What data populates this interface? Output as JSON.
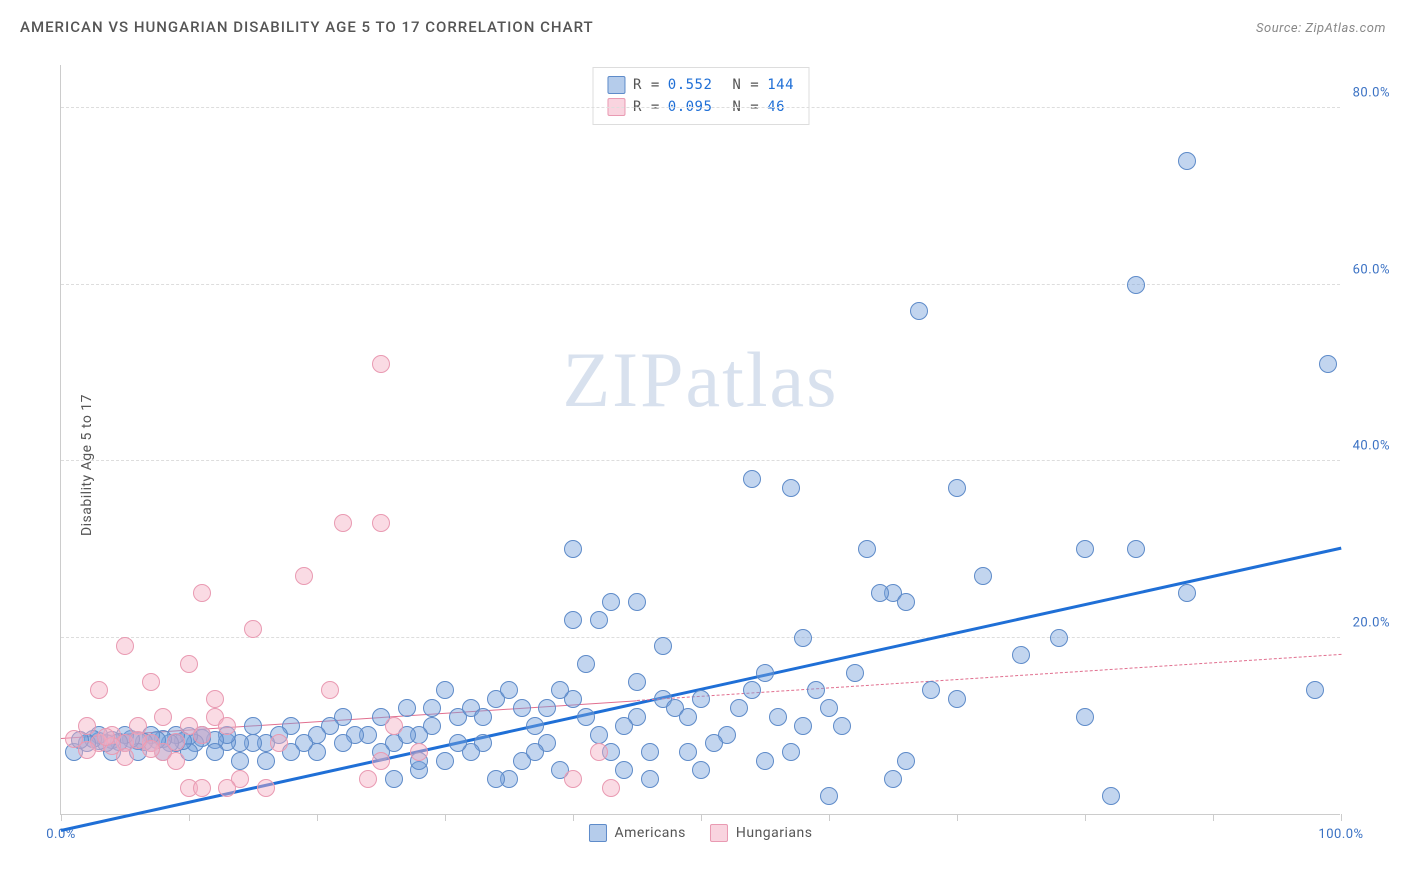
{
  "title": "AMERICAN VS HUNGARIAN DISABILITY AGE 5 TO 17 CORRELATION CHART",
  "source": "Source: ZipAtlas.com",
  "ylabel": "Disability Age 5 to 17",
  "watermark_a": "ZIP",
  "watermark_b": "atlas",
  "chart": {
    "type": "scatter",
    "xlim": [
      0,
      100
    ],
    "ylim": [
      0,
      85
    ],
    "background_color": "#ffffff",
    "grid_color": "#dddddd",
    "axis_color": "#cccccc",
    "x_ticks": [
      0,
      10,
      20,
      30,
      40,
      50,
      60,
      70,
      80,
      90,
      100
    ],
    "x_tick_labels": {
      "0": "0.0%",
      "100": "100.0%"
    },
    "x_label_color": "#3b72c4",
    "y_ticks": [
      20,
      40,
      60,
      80
    ],
    "y_tick_labels": [
      "20.0%",
      "40.0%",
      "60.0%",
      "80.0%"
    ],
    "y_label_color": "#3b72c4",
    "point_radius": 9,
    "point_stroke_width": 1,
    "series": [
      {
        "name": "Americans",
        "fill": "rgba(120,162,219,0.45)",
        "stroke": "#5e8bc9",
        "trend": {
          "y_at_x0": -2,
          "y_at_x100": 30,
          "color": "#1f6fd6",
          "width": 3,
          "dash": "solid"
        },
        "points": [
          [
            1,
            7
          ],
          [
            54,
            38
          ],
          [
            84,
            30
          ],
          [
            84,
            60
          ],
          [
            99,
            51
          ],
          [
            67,
            57
          ],
          [
            88,
            74
          ],
          [
            98,
            14
          ],
          [
            80,
            30
          ],
          [
            80,
            11
          ],
          [
            70,
            13
          ],
          [
            65,
            25
          ],
          [
            64,
            25
          ],
          [
            88,
            25
          ],
          [
            70,
            37
          ],
          [
            45,
            24
          ],
          [
            65,
            4
          ],
          [
            60,
            2
          ],
          [
            60,
            12
          ],
          [
            66,
            6
          ],
          [
            72,
            27
          ],
          [
            75,
            18
          ],
          [
            78,
            20
          ],
          [
            82,
            2
          ],
          [
            58,
            10
          ],
          [
            57,
            37
          ],
          [
            50,
            5
          ],
          [
            49,
            7
          ],
          [
            50,
            13
          ],
          [
            47,
            13
          ],
          [
            45,
            11
          ],
          [
            44,
            5
          ],
          [
            42,
            22
          ],
          [
            40,
            13
          ],
          [
            38,
            8
          ],
          [
            37,
            10
          ],
          [
            36,
            12
          ],
          [
            35,
            4
          ],
          [
            34,
            13
          ],
          [
            33,
            8
          ],
          [
            32,
            7
          ],
          [
            31,
            11
          ],
          [
            30,
            6
          ],
          [
            29,
            10
          ],
          [
            28,
            5
          ],
          [
            28,
            9
          ],
          [
            27,
            12
          ],
          [
            26,
            8
          ],
          [
            25,
            7
          ],
          [
            25,
            11
          ],
          [
            24,
            9
          ],
          [
            23,
            9
          ],
          [
            22,
            8
          ],
          [
            22,
            11
          ],
          [
            21,
            10
          ],
          [
            20,
            7
          ],
          [
            20,
            9
          ],
          [
            19,
            8
          ],
          [
            18,
            7
          ],
          [
            18,
            10
          ],
          [
            17,
            9
          ],
          [
            16,
            8
          ],
          [
            16,
            6
          ],
          [
            15,
            8
          ],
          [
            15,
            10
          ],
          [
            14,
            8
          ],
          [
            14,
            6
          ],
          [
            13,
            8.2
          ],
          [
            13,
            9
          ],
          [
            12,
            8.4
          ],
          [
            12,
            7
          ],
          [
            11,
            8.6
          ],
          [
            11,
            9
          ],
          [
            10.5,
            8.0
          ],
          [
            10,
            8.8
          ],
          [
            10,
            7
          ],
          [
            9.5,
            8.3
          ],
          [
            9,
            8
          ],
          [
            9,
            9
          ],
          [
            8.5,
            8.1
          ],
          [
            8,
            8.5
          ],
          [
            8,
            7
          ],
          [
            7.5,
            8.4
          ],
          [
            7,
            8
          ],
          [
            7,
            9
          ],
          [
            6.5,
            8.2
          ],
          [
            6,
            8.3
          ],
          [
            6,
            7
          ],
          [
            5.5,
            8.5
          ],
          [
            5,
            8
          ],
          [
            5,
            9
          ],
          [
            4.5,
            8.2
          ],
          [
            4,
            8.4
          ],
          [
            4,
            7
          ],
          [
            3.5,
            8.1
          ],
          [
            3,
            8.3
          ],
          [
            3,
            9
          ],
          [
            2.5,
            8.5
          ],
          [
            2,
            8
          ],
          [
            1.5,
            8.4
          ],
          [
            39,
            14
          ],
          [
            42,
            9
          ],
          [
            44,
            10
          ],
          [
            46,
            7
          ],
          [
            48,
            12
          ],
          [
            52,
            9
          ],
          [
            54,
            14
          ],
          [
            55,
            6
          ],
          [
            56,
            11
          ],
          [
            58,
            20
          ],
          [
            62,
            16
          ],
          [
            63,
            30
          ],
          [
            66,
            24
          ],
          [
            68,
            14
          ],
          [
            43,
            24
          ],
          [
            41,
            17
          ],
          [
            40,
            22
          ],
          [
            38,
            12
          ],
          [
            36,
            6
          ],
          [
            34,
            4
          ],
          [
            32,
            12
          ],
          [
            30,
            14
          ],
          [
            28,
            6
          ],
          [
            26,
            4
          ],
          [
            40,
            30
          ],
          [
            45,
            15
          ],
          [
            47,
            19
          ],
          [
            49,
            11
          ],
          [
            51,
            8
          ],
          [
            53,
            12
          ],
          [
            55,
            16
          ],
          [
            57,
            7
          ],
          [
            59,
            14
          ],
          [
            61,
            10
          ],
          [
            35,
            14
          ],
          [
            37,
            7
          ],
          [
            39,
            5
          ],
          [
            41,
            11
          ],
          [
            43,
            7
          ],
          [
            33,
            11
          ],
          [
            31,
            8
          ],
          [
            29,
            12
          ],
          [
            27,
            9
          ],
          [
            46,
            4
          ]
        ]
      },
      {
        "name": "Hungarians",
        "fill": "rgba(244,176,196,0.45)",
        "stroke": "#e99ab2",
        "trend": {
          "y_at_x0": 8.5,
          "y_at_x100": 18,
          "color": "#e16f8f",
          "width": 1,
          "dash_solid_until_x": 45
        },
        "points": [
          [
            25,
            51
          ],
          [
            22,
            33
          ],
          [
            25,
            33
          ],
          [
            19,
            27
          ],
          [
            11,
            25
          ],
          [
            5,
            19
          ],
          [
            15,
            21
          ],
          [
            3,
            14
          ],
          [
            7,
            15
          ],
          [
            10,
            17
          ],
          [
            12,
            13
          ],
          [
            17,
            8
          ],
          [
            21,
            14
          ],
          [
            24,
            4
          ],
          [
            25,
            6
          ],
          [
            26,
            10
          ],
          [
            28,
            7
          ],
          [
            40,
            4
          ],
          [
            42,
            7
          ],
          [
            43,
            3
          ],
          [
            14,
            4
          ],
          [
            16,
            3
          ],
          [
            10,
            3
          ],
          [
            11,
            3
          ],
          [
            13,
            3
          ],
          [
            1,
            8.5
          ],
          [
            2,
            10
          ],
          [
            3,
            8
          ],
          [
            4,
            9
          ],
          [
            5,
            8
          ],
          [
            6,
            10
          ],
          [
            7,
            8
          ],
          [
            8,
            7
          ],
          [
            9,
            6
          ],
          [
            10,
            10
          ],
          [
            11,
            9
          ],
          [
            12,
            11
          ],
          [
            13,
            10
          ],
          [
            4,
            7.7
          ],
          [
            6,
            8.4
          ],
          [
            8,
            11
          ],
          [
            2,
            7.3
          ],
          [
            3.5,
            8.7
          ],
          [
            5,
            6.5
          ],
          [
            7,
            7.4
          ],
          [
            9,
            8.2
          ]
        ]
      }
    ],
    "legend_top": {
      "rows": [
        {
          "swatch_fill": "rgba(120,162,219,0.55)",
          "swatch_stroke": "#5e8bc9",
          "r_label": "R =",
          "r_value": "0.552",
          "n_label": "N =",
          "n_value": "144"
        },
        {
          "swatch_fill": "rgba(244,176,196,0.55)",
          "swatch_stroke": "#e99ab2",
          "r_label": "R =",
          "r_value": "0.095",
          "n_label": "N =",
          "n_value": " 46"
        }
      ],
      "text_color": "#555",
      "value_color": "#1f6fd6"
    },
    "legend_bottom": [
      {
        "swatch_fill": "rgba(120,162,219,0.55)",
        "swatch_stroke": "#5e8bc9",
        "label": "Americans"
      },
      {
        "swatch_fill": "rgba(244,176,196,0.55)",
        "swatch_stroke": "#e99ab2",
        "label": "Hungarians"
      }
    ]
  }
}
